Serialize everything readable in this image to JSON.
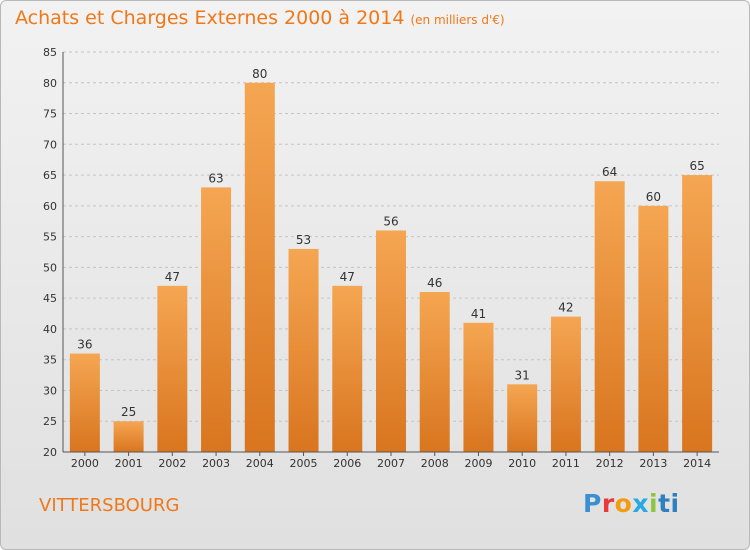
{
  "header": {
    "title": "Achats et Charges Externes 2000 à 2014",
    "subtitle": "(en milliers d'€)"
  },
  "footer": {
    "commune": "VITTERSBOURG",
    "brand": [
      "P",
      "r",
      "o",
      "x",
      "i",
      "t",
      "i"
    ]
  },
  "colors": {
    "accent": "#f07818",
    "bar_light": "#f5a652",
    "bar_dark": "#d9751f"
  },
  "chart_data": {
    "type": "bar",
    "categories": [
      "2000",
      "2001",
      "2002",
      "2003",
      "2004",
      "2005",
      "2006",
      "2007",
      "2008",
      "2009",
      "2010",
      "2011",
      "2012",
      "2013",
      "2014"
    ],
    "values": [
      36,
      25,
      47,
      63,
      80,
      53,
      47,
      56,
      46,
      41,
      31,
      42,
      64,
      60,
      65
    ],
    "ylim": [
      20,
      85
    ],
    "yticks": [
      20,
      25,
      30,
      35,
      40,
      45,
      50,
      55,
      60,
      65,
      70,
      75,
      80,
      85
    ],
    "grid": true,
    "legend": "none"
  }
}
